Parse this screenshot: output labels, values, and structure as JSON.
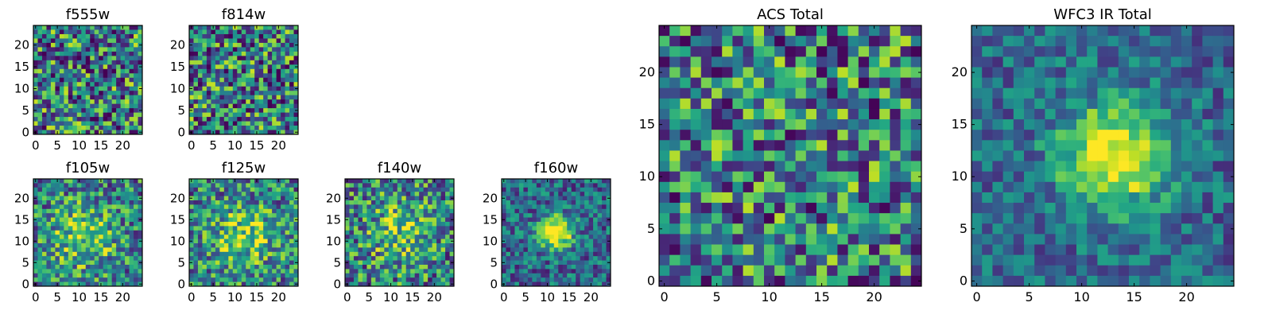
{
  "chart_data": [
    {
      "type": "heatmap",
      "id": "f555w",
      "title": "f555w",
      "x_ticks": [
        0,
        5,
        10,
        15,
        20
      ],
      "y_ticks": [
        0,
        5,
        10,
        15,
        20
      ],
      "xlim": [
        0,
        25
      ],
      "ylim": [
        0,
        25
      ],
      "grid_size": 25,
      "colormap": "viridis",
      "texture": "uniform noise"
    },
    {
      "type": "heatmap",
      "id": "f814w",
      "title": "f814w",
      "x_ticks": [
        0,
        5,
        10,
        15,
        20
      ],
      "y_ticks": [
        0,
        5,
        10,
        15,
        20
      ],
      "xlim": [
        0,
        25
      ],
      "ylim": [
        0,
        25
      ],
      "grid_size": 25,
      "colormap": "viridis",
      "texture": "uniform noise"
    },
    {
      "type": "heatmap",
      "id": "f105w",
      "title": "f105w",
      "x_ticks": [
        0,
        5,
        10,
        15,
        20
      ],
      "y_ticks": [
        0,
        5,
        10,
        15,
        20
      ],
      "xlim": [
        0,
        25
      ],
      "ylim": [
        0,
        25
      ],
      "grid_size": 25,
      "colormap": "viridis",
      "texture": "faint central source"
    },
    {
      "type": "heatmap",
      "id": "f125w",
      "title": "f125w",
      "x_ticks": [
        0,
        5,
        10,
        15,
        20
      ],
      "y_ticks": [
        0,
        5,
        10,
        15,
        20
      ],
      "xlim": [
        0,
        25
      ],
      "ylim": [
        0,
        25
      ],
      "grid_size": 25,
      "colormap": "viridis",
      "texture": "faint central source"
    },
    {
      "type": "heatmap",
      "id": "f140w",
      "title": "f140w",
      "x_ticks": [
        0,
        5,
        10,
        15,
        20
      ],
      "y_ticks": [
        0,
        5,
        10,
        15,
        20
      ],
      "xlim": [
        0,
        25
      ],
      "ylim": [
        0,
        25
      ],
      "grid_size": 25,
      "colormap": "viridis",
      "texture": "faint central source"
    },
    {
      "type": "heatmap",
      "id": "f160w",
      "title": "f160w",
      "x_ticks": [
        0,
        5,
        10,
        15,
        20
      ],
      "y_ticks": [
        0,
        5,
        10,
        15,
        20
      ],
      "xlim": [
        0,
        25
      ],
      "ylim": [
        0,
        25
      ],
      "grid_size": 25,
      "colormap": "viridis",
      "texture": "bright compact source near (12, 12)"
    },
    {
      "type": "heatmap",
      "id": "acs-total",
      "title": "ACS Total",
      "x_ticks": [
        0,
        5,
        10,
        15,
        20
      ],
      "y_ticks": [
        0,
        5,
        10,
        15,
        20
      ],
      "xlim": [
        0,
        25
      ],
      "ylim": [
        0,
        25
      ],
      "grid_size": 25,
      "colormap": "viridis",
      "texture": "uniform noise"
    },
    {
      "type": "heatmap",
      "id": "wfc3-ir-total",
      "title": "WFC3 IR Total",
      "x_ticks": [
        0,
        5,
        10,
        15,
        20
      ],
      "y_ticks": [
        0,
        5,
        10,
        15,
        20
      ],
      "xlim": [
        0,
        25
      ],
      "ylim": [
        0,
        25
      ],
      "grid_size": 25,
      "colormap": "viridis",
      "texture": "bright extended source near (13, 12)"
    }
  ]
}
